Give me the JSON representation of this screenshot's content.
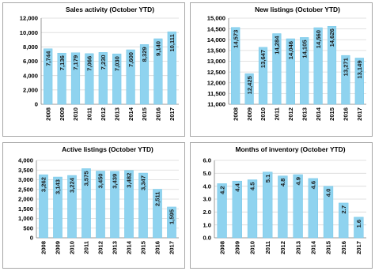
{
  "colors": {
    "bar": "#8fd3ef",
    "bar_edge": "#6cc3e6",
    "grid": "#d9d9d9",
    "axis": "#808080",
    "border": "#a6a6a6"
  },
  "chart_data": [
    {
      "type": "bar",
      "title": "Sales activity (October YTD)",
      "categories": [
        "2008",
        "2009",
        "2010",
        "2011",
        "2012",
        "2013",
        "2014",
        "2015",
        "2016",
        "2017"
      ],
      "values": [
        7744,
        7136,
        7179,
        7066,
        7230,
        7030,
        7600,
        8329,
        9140,
        10111
      ],
      "data_labels": [
        "7,744",
        "7,136",
        "7,179",
        "7,066",
        "7,230",
        "7,030",
        "7,600",
        "8,329",
        "9,140",
        "10,111"
      ],
      "ylim": [
        0,
        12000
      ],
      "yticks": [
        "0",
        "2,000",
        "4,000",
        "6,000",
        "8,000",
        "10,000",
        "12,000"
      ],
      "grid": true,
      "legend": "none"
    },
    {
      "type": "bar",
      "title": "New listings (October YTD)",
      "categories": [
        "2008",
        "2009",
        "2010",
        "2011",
        "2012",
        "2013",
        "2014",
        "2015",
        "2016",
        "2017"
      ],
      "values": [
        14573,
        12425,
        13647,
        14284,
        14046,
        14105,
        14560,
        14626,
        13271,
        13149
      ],
      "data_labels": [
        "14,573",
        "12,425",
        "13,647",
        "14,284",
        "14,046",
        "14,105",
        "14,560",
        "14,626",
        "13,271",
        "13,149"
      ],
      "ylim": [
        11000,
        15000
      ],
      "yticks": [
        "11,000",
        "11,500",
        "12,000",
        "12,500",
        "13,000",
        "13,500",
        "14,000",
        "14,500",
        "15,000"
      ],
      "grid": true,
      "legend": "none"
    },
    {
      "type": "bar",
      "title": "Active listings (October YTD)",
      "categories": [
        "2008",
        "2009",
        "2010",
        "2011",
        "2012",
        "2013",
        "2014",
        "2015",
        "2016",
        "2017"
      ],
      "values": [
        3262,
        3143,
        3224,
        3575,
        3450,
        3439,
        3482,
        3347,
        2511,
        1595
      ],
      "data_labels": [
        "3,262",
        "3,143",
        "3,224",
        "3,575",
        "3,450",
        "3,439",
        "3,482",
        "3,347",
        "2,511",
        "1,595"
      ],
      "ylim": [
        0,
        4000
      ],
      "yticks": [
        "0",
        "500",
        "1,000",
        "1,500",
        "2,000",
        "2,500",
        "3,000",
        "3,500",
        "4,000"
      ],
      "grid": true,
      "legend": "none"
    },
    {
      "type": "bar",
      "title": "Months of inventory (October YTD)",
      "categories": [
        "2008",
        "2009",
        "2010",
        "2011",
        "2012",
        "2013",
        "2014",
        "2015",
        "2016",
        "2017"
      ],
      "values": [
        4.2,
        4.4,
        4.5,
        5.1,
        4.8,
        4.9,
        4.6,
        4.0,
        2.7,
        1.6
      ],
      "data_labels": [
        "4.2",
        "4.4",
        "4.5",
        "5.1",
        "4.8",
        "4.9",
        "4.6",
        "4.0",
        "2.7",
        "1.6"
      ],
      "ylim": [
        0,
        6
      ],
      "yticks": [
        "0.0",
        "1.0",
        "2.0",
        "3.0",
        "4.0",
        "5.0",
        "6.0"
      ],
      "grid": true,
      "legend": "none"
    }
  ]
}
